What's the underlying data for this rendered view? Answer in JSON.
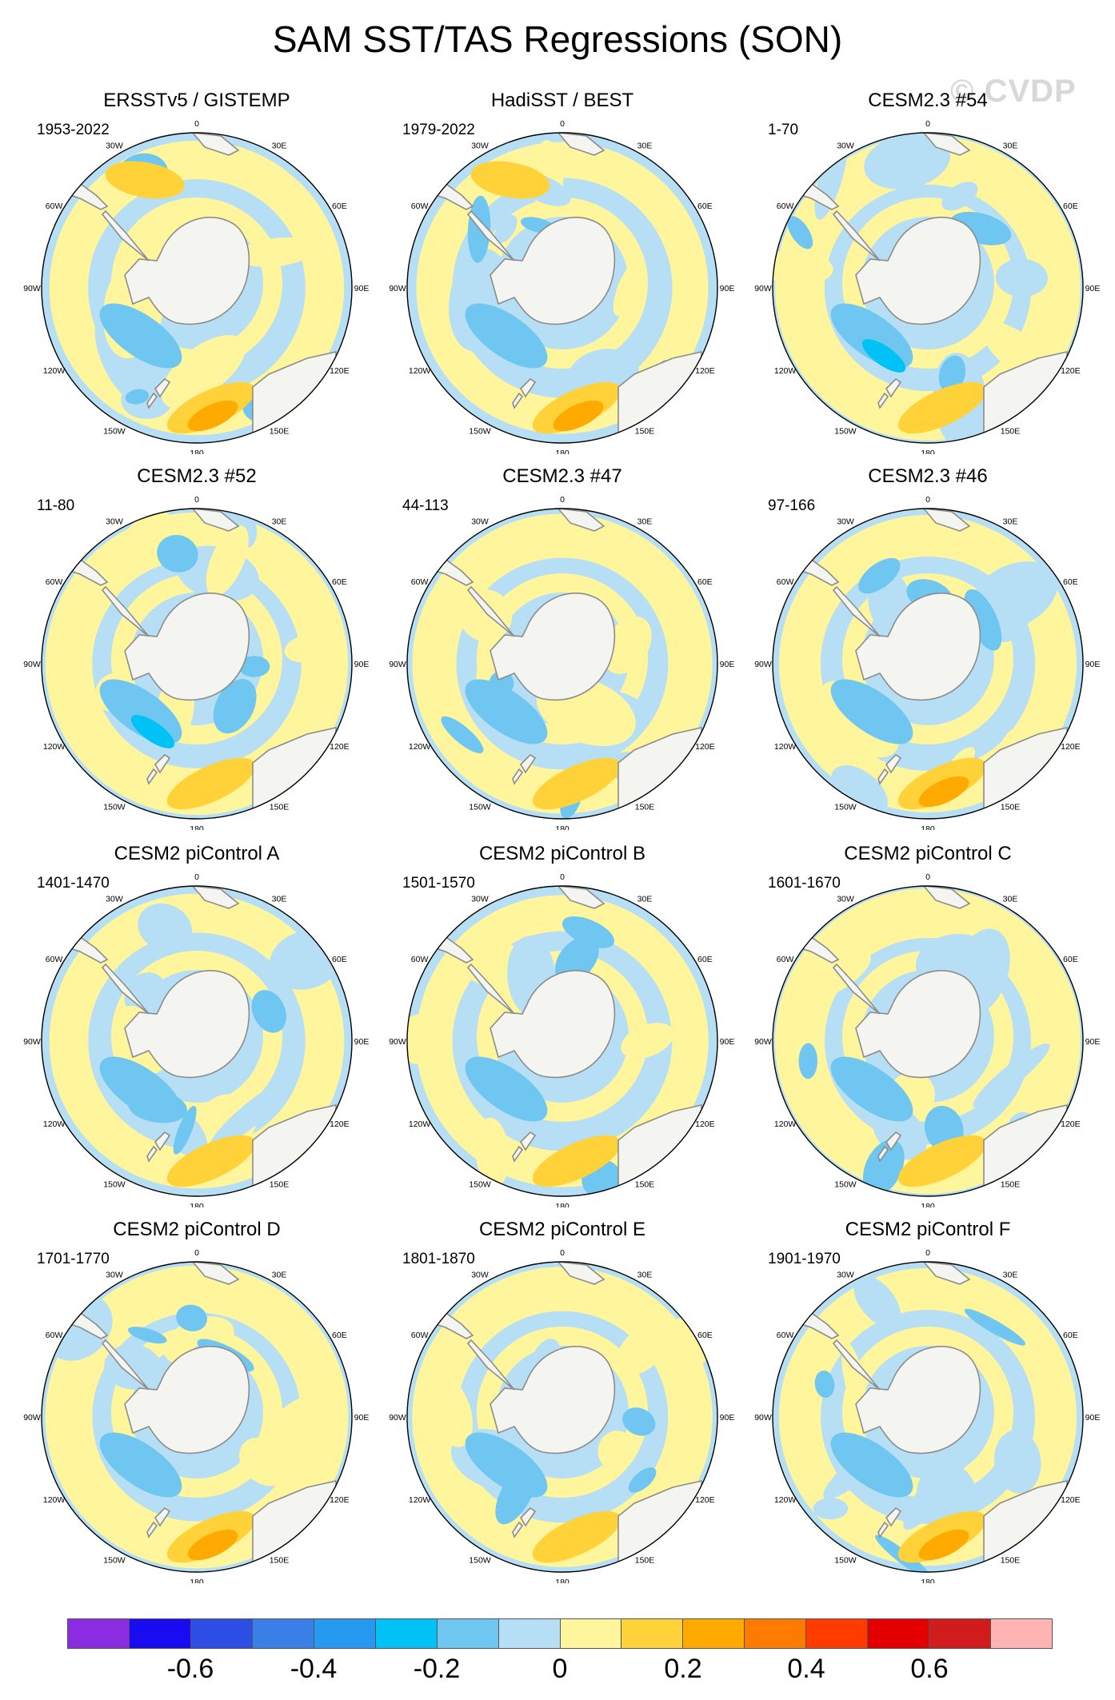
{
  "title": "SAM SST/TAS Regressions (SON)",
  "watermark": "© CVDP",
  "lon_labels": [
    "0",
    "30E",
    "60E",
    "90E",
    "120E",
    "150E",
    "180",
    "150W",
    "120W",
    "90W",
    "60W",
    "30W"
  ],
  "panels": [
    {
      "title": "ERSSTv5 / GISTEMP",
      "period": "1953-2022"
    },
    {
      "title": "HadiSST / BEST",
      "period": "1979-2022"
    },
    {
      "title": "CESM2.3 #54",
      "period": "1-70"
    },
    {
      "title": "CESM2.3 #52",
      "period": "11-80"
    },
    {
      "title": "CESM2.3 #47",
      "period": "44-113"
    },
    {
      "title": "CESM2.3 #46",
      "period": "97-166"
    },
    {
      "title": "CESM2 piControl A",
      "period": "1401-1470"
    },
    {
      "title": "CESM2 piControl B",
      "period": "1501-1570"
    },
    {
      "title": "CESM2 piControl C",
      "period": "1601-1670"
    },
    {
      "title": "CESM2 piControl D",
      "period": "1701-1770"
    },
    {
      "title": "CESM2 piControl E",
      "period": "1801-1870"
    },
    {
      "title": "CESM2 piControl F",
      "period": "1901-1970"
    }
  ],
  "colorbar": {
    "colors": [
      "#8b2be2",
      "#1a0cf0",
      "#2d4fe8",
      "#3b7fe8",
      "#2699f0",
      "#00c2f5",
      "#6fc6f0",
      "#b6def4",
      "#fff59c",
      "#ffd23a",
      "#ffaa00",
      "#ff7b00",
      "#ff3b00",
      "#e40000",
      "#d01c1c",
      "#ffb3b3"
    ],
    "tick_labels": [
      "-0.6",
      "-0.4",
      "-0.2",
      "0",
      "0.2",
      "0.4",
      "0.6"
    ]
  }
}
